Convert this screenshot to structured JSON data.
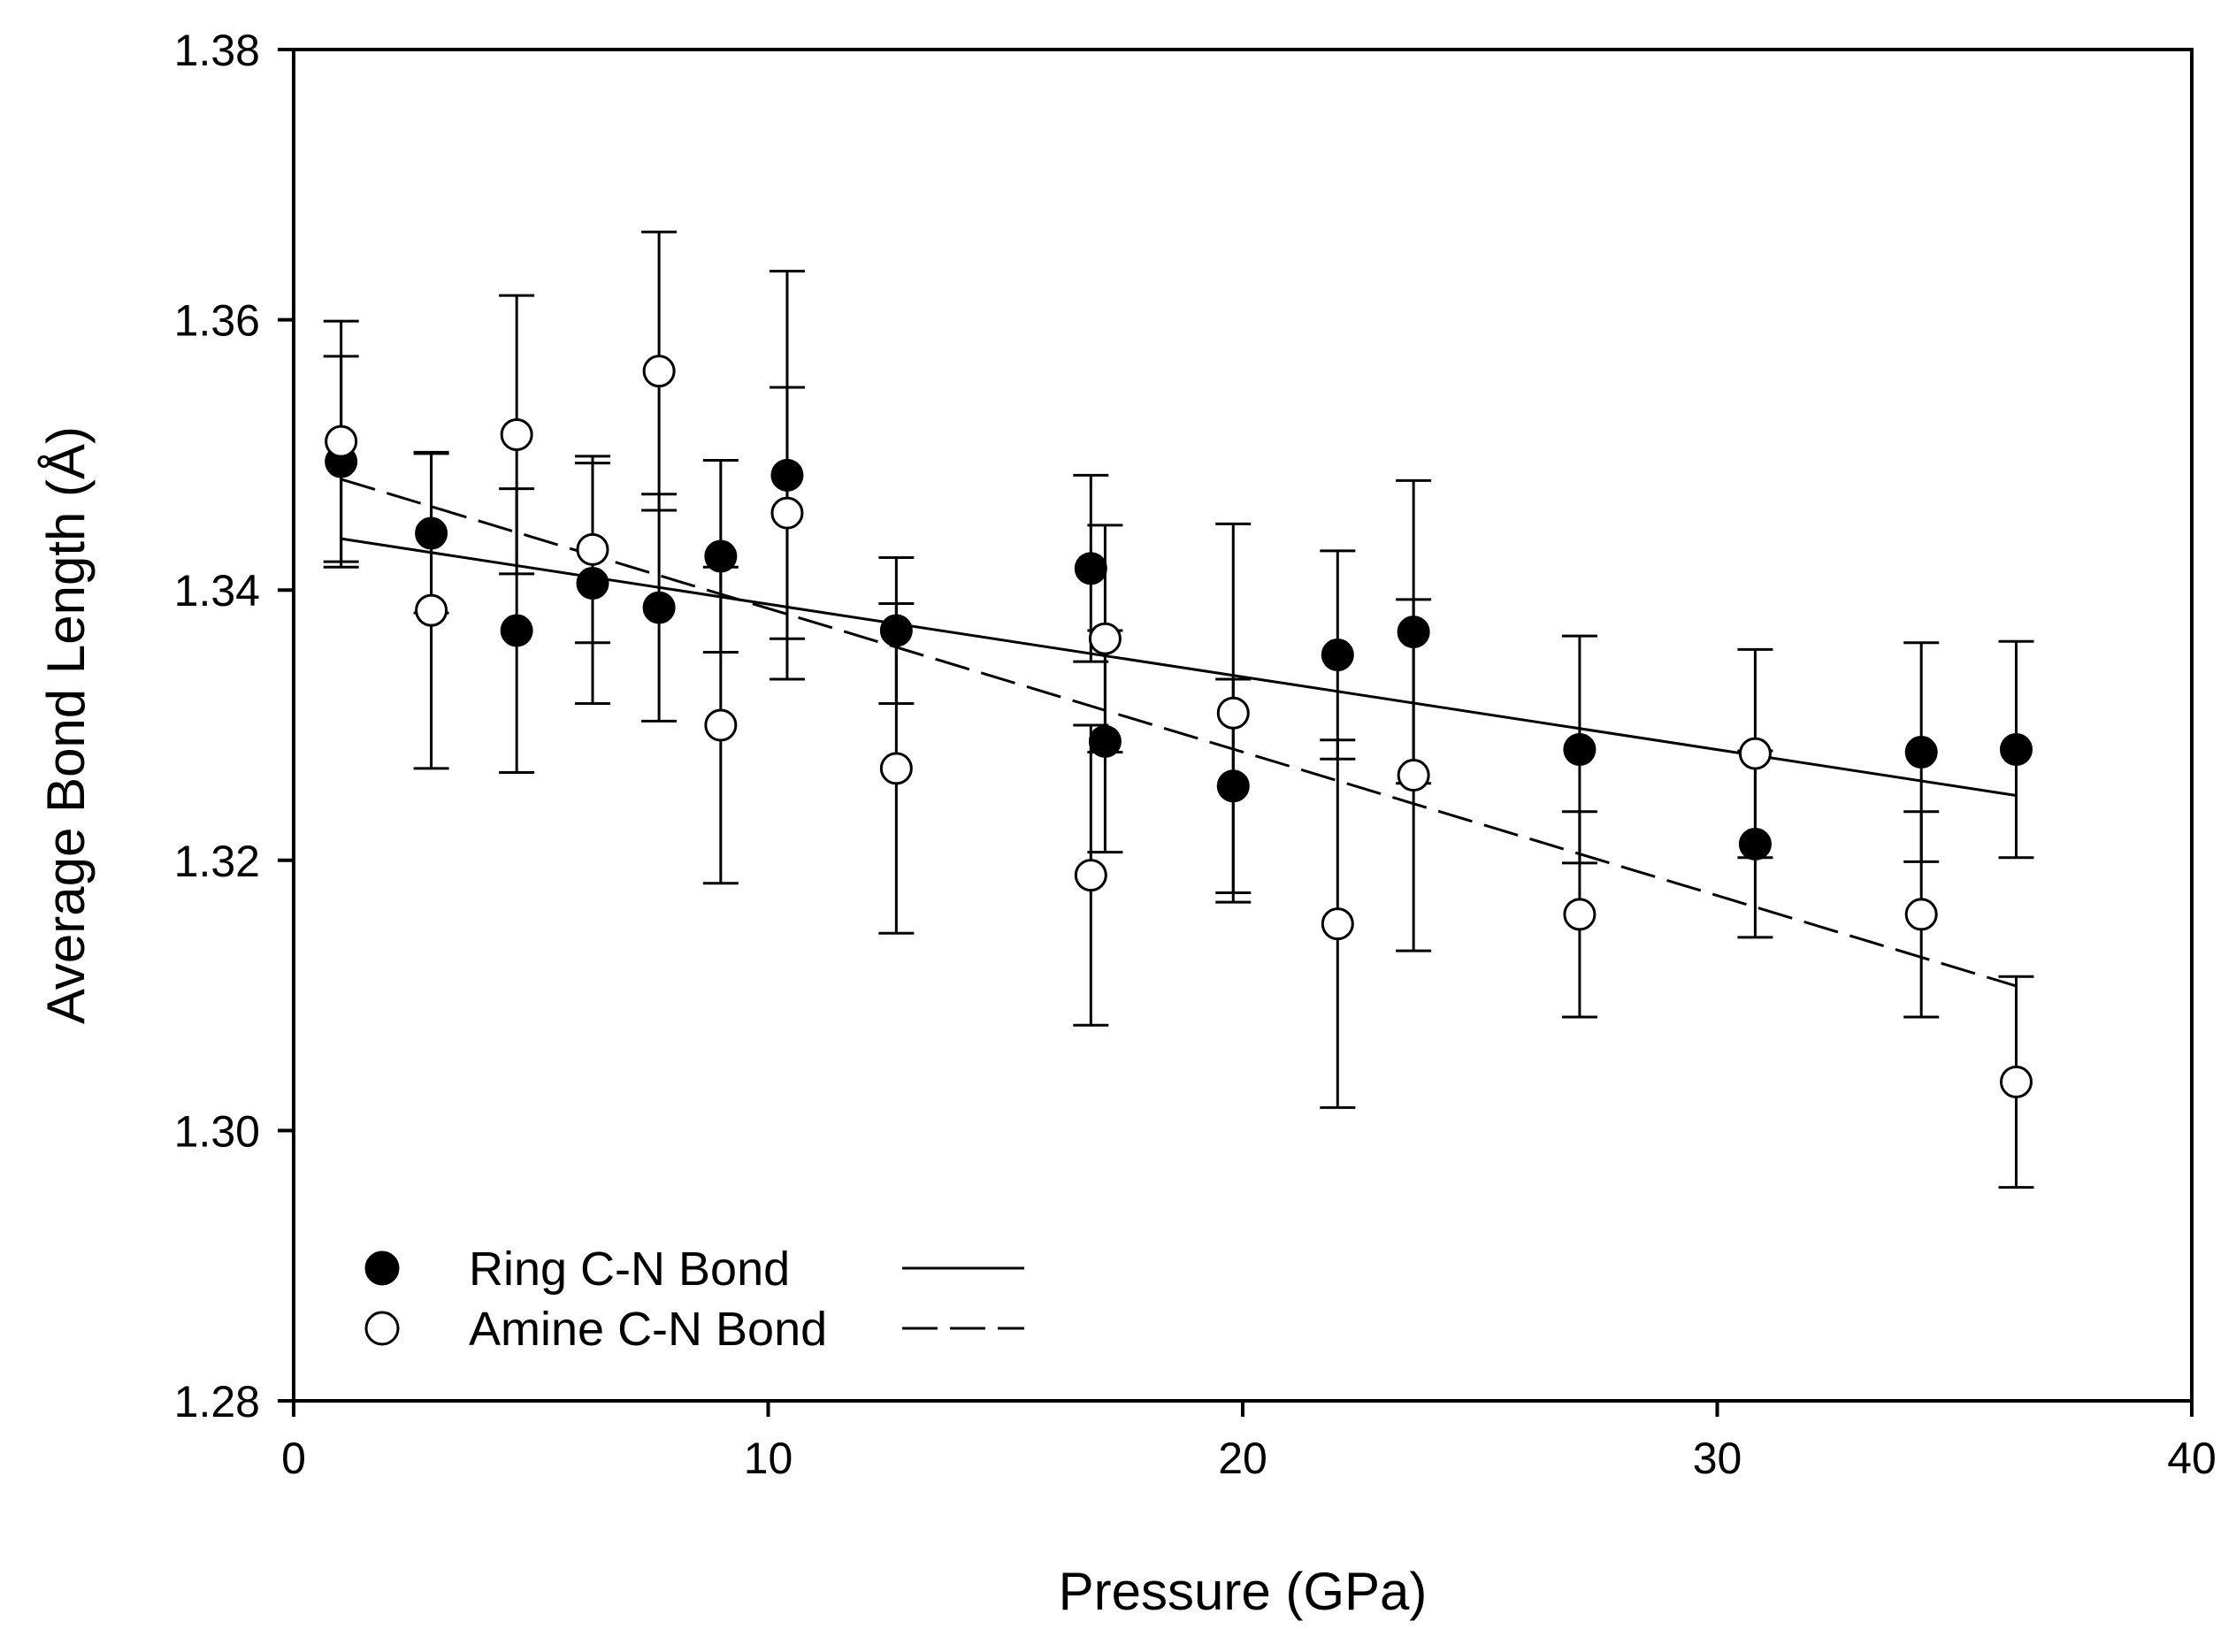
{
  "chart_data": {
    "type": "scatter",
    "title": "",
    "xlabel": "Pressure (GPa)",
    "ylabel": "Average Bond Length (Å)",
    "xlim": [
      0,
      40
    ],
    "ylim": [
      1.28,
      1.38
    ],
    "xticks": [
      0,
      10,
      20,
      30,
      40
    ],
    "xtick_labels": [
      "0",
      "10",
      "20",
      "30",
      "40"
    ],
    "yticks": [
      1.28,
      1.3,
      1.32,
      1.34,
      1.36,
      1.38
    ],
    "ytick_labels": [
      "1.28",
      "1.30",
      "1.32",
      "1.34",
      "1.36",
      "1.38"
    ],
    "grid": false,
    "legend_position": "bottom-left",
    "series": [
      {
        "name": "Ring C-N Bond",
        "marker": "filled-circle",
        "line_style": "solid",
        "color": "#000000",
        "x": [
          1.0,
          2.9,
          4.7,
          6.3,
          7.7,
          9.0,
          10.4,
          12.7,
          16.8,
          17.1,
          19.8,
          22.0,
          23.6,
          27.1,
          30.8,
          34.3,
          36.3
        ],
        "y": [
          1.3495,
          1.3442,
          1.337,
          1.3405,
          1.3387,
          1.3425,
          1.3485,
          1.337,
          1.3416,
          1.3288,
          1.3255,
          1.3352,
          1.3369,
          1.3282,
          1.3212,
          1.328,
          1.3282
        ],
        "err": [
          0.0078,
          0.0059,
          0.0105,
          0.0089,
          0.0084,
          0.0071,
          0.0151,
          0.0054,
          0.0069,
          0.0082,
          0.0079,
          0.0077,
          0.0112,
          0.0084,
          0.0069,
          0.0081,
          0.008
        ],
        "fit": {
          "x": [
            1.0,
            36.3
          ],
          "y": [
            1.3438,
            1.3248
          ]
        }
      },
      {
        "name": "Amine C-N Bond",
        "marker": "open-circle",
        "line_style": "dashed",
        "color": "#000000",
        "x": [
          1.0,
          2.9,
          4.7,
          6.3,
          7.7,
          9.0,
          10.4,
          12.7,
          16.8,
          17.1,
          19.8,
          22.0,
          23.6,
          27.1,
          30.8,
          34.3,
          36.3
        ],
        "y": [
          1.351,
          1.3385,
          1.3515,
          1.343,
          1.3562,
          1.33,
          1.3457,
          1.3268,
          1.3189,
          1.3364,
          1.3309,
          1.3153,
          1.3263,
          1.316,
          1.3279,
          1.316,
          1.3036
        ],
        "err": [
          0.0089,
          0.0117,
          0.0103,
          0.0069,
          0.0103,
          0.0117,
          0.0093,
          0.0122,
          0.0111,
          0.0084,
          0.014,
          0.0136,
          0.013,
          0.0076,
          0.0077,
          0.0076,
          0.0078
        ],
        "fit": {
          "x": [
            1.0,
            36.3
          ],
          "y": [
            1.3482,
            1.3107
          ]
        }
      }
    ]
  }
}
